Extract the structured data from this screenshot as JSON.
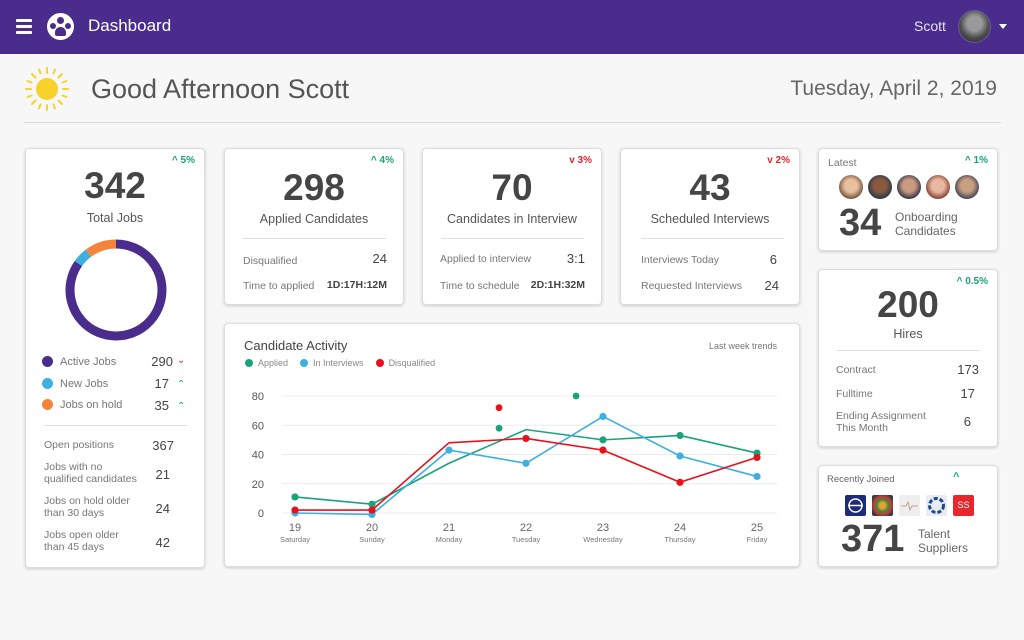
{
  "topbar": {
    "title": "Dashboard",
    "user_name": "Scott",
    "brand_color": "#4a2c8c"
  },
  "greeting": {
    "text": "Good Afternoon Scott",
    "date": "Tuesday, April 2, 2019",
    "weather_icon": "sun-icon"
  },
  "total_jobs": {
    "trend": "^ 5%",
    "value": "342",
    "label": "Total Jobs",
    "donut": [
      {
        "name": "Active Jobs",
        "value": 290,
        "color": "#4a2c8c"
      },
      {
        "name": "New Jobs",
        "value": 17,
        "color": "#3db0e0"
      },
      {
        "name": "Jobs on hold",
        "value": 35,
        "color": "#f5843a"
      }
    ],
    "legend": [
      {
        "label": "Active Jobs",
        "value": "290",
        "trend": "v",
        "dir": "down"
      },
      {
        "label": "New Jobs",
        "value": "17",
        "trend": "^",
        "dir": "up"
      },
      {
        "label": "Jobs on hold",
        "value": "35",
        "trend": "^",
        "dir": "up"
      }
    ],
    "stats": [
      {
        "label": "Open positions",
        "value": "367"
      },
      {
        "label": "Jobs with no qualified candidates",
        "value": "21"
      },
      {
        "label": "Jobs on hold older than 30 days",
        "value": "24"
      },
      {
        "label": "Jobs open older than 45 days",
        "value": "42"
      }
    ]
  },
  "applied": {
    "trend": "^ 4%",
    "value": "298",
    "label": "Applied Candidates",
    "rows": [
      {
        "label": "Disqualified",
        "value": "24"
      },
      {
        "label": "Time to applied",
        "value": "1D:17H:12M"
      }
    ]
  },
  "interview": {
    "trend": "v 3%",
    "value": "70",
    "label": "Candidates in Interview",
    "rows": [
      {
        "label": "Applied to interview",
        "value": "3:1"
      },
      {
        "label": "Time to schedule",
        "value": "2D:1H:32M"
      }
    ]
  },
  "scheduled": {
    "trend": "v 2%",
    "value": "43",
    "label": "Scheduled Interviews",
    "rows": [
      {
        "label": "Interviews Today",
        "value": "6"
      },
      {
        "label": "Requested Interviews",
        "value": "24"
      }
    ]
  },
  "onboarding": {
    "heading": "Latest",
    "trend": "^ 1%",
    "value": "34",
    "label_line1": "Onboarding",
    "label_line2": "Candidates"
  },
  "hires": {
    "trend": "^ 0.5%",
    "value": "200",
    "label": "Hires",
    "rows": [
      {
        "label": "Contract",
        "value": "173"
      },
      {
        "label": "Fulltime",
        "value": "17"
      },
      {
        "label": "Ending Assignment This Month",
        "value": "6"
      }
    ]
  },
  "suppliers": {
    "heading": "Recently Joined",
    "trend": "^",
    "value": "371",
    "label_line1": "Talent",
    "label_line2": "Suppliers",
    "logos": [
      {
        "name": "globe-logo",
        "color": "#1f2a7a",
        "text": ""
      },
      {
        "name": "mosaic-logo",
        "color": "#3a3a3a",
        "text": ""
      },
      {
        "name": "pulse-logo",
        "color": "#eeeeee",
        "text": ""
      },
      {
        "name": "swirl-logo",
        "color": "#e8ecf2",
        "text": ""
      },
      {
        "name": "ss-logo",
        "color": "#e8262e",
        "text": "SS"
      }
    ]
  },
  "chart_data": {
    "type": "line",
    "title": "Candidate Activity",
    "note": "Last week trends",
    "x": [
      "19",
      "20",
      "21",
      "22",
      "23",
      "24",
      "25"
    ],
    "x_sublabels": [
      "Saturday",
      "Sunday",
      "Monday",
      "Tuesday",
      "Wednesday",
      "Thursday",
      "Friday"
    ],
    "ylim": [
      0,
      80
    ],
    "yticks": [
      "0",
      "20",
      "40",
      "60",
      "80"
    ],
    "grid": true,
    "legend_position": "top-left",
    "series": [
      {
        "name": "Applied",
        "color": "#1aa37a",
        "values": [
          11,
          6,
          34,
          57,
          50,
          53,
          41
        ]
      },
      {
        "name": "In Interviews",
        "color": "#3db0e0",
        "values": [
          0,
          -1,
          43,
          34,
          66,
          39,
          25
        ]
      },
      {
        "name": "Disqualified",
        "color": "#e8101a",
        "values": [
          2,
          2,
          48,
          51,
          43,
          21,
          38
        ]
      }
    ],
    "extra_points": [
      {
        "series": "Disqualified",
        "x": 21.65,
        "y": 72
      },
      {
        "series": "Applied",
        "x": 21.65,
        "y": 58
      },
      {
        "series": "Applied",
        "x": 22.65,
        "y": 80
      }
    ]
  }
}
